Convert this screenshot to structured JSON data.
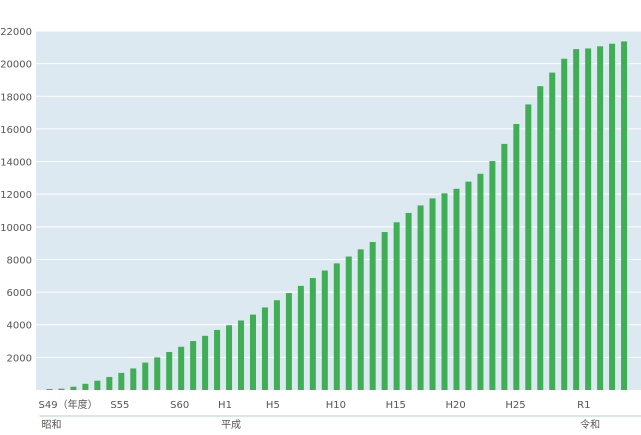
{
  "chart_data": {
    "type": "bar",
    "title": "",
    "xlabel": "",
    "ylabel": "",
    "ylim": [
      0,
      22000
    ],
    "y_ticks": [
      2000,
      4000,
      6000,
      8000,
      10000,
      12000,
      14000,
      16000,
      18000,
      20000,
      22000
    ],
    "grid": true,
    "bar_color": "#3fae55",
    "plot_background": "#dce9f0",
    "categories": [
      "S49",
      "S50",
      "S51",
      "S52",
      "S53",
      "S54",
      "S55",
      "S56",
      "S57",
      "S58",
      "S59",
      "S60",
      "S61",
      "S62",
      "S63",
      "H1",
      "H2",
      "H3",
      "H4",
      "H5",
      "H6",
      "H7",
      "H8",
      "H9",
      "H10",
      "H11",
      "H12",
      "H13",
      "H14",
      "H15",
      "H16",
      "H17",
      "H18",
      "H19",
      "H20",
      "H21",
      "H22",
      "H23",
      "H24",
      "H25",
      "H26",
      "H27",
      "H28",
      "H29",
      "H30",
      "R1",
      "R2",
      "R3",
      "R4"
    ],
    "values": [
      60,
      80,
      200,
      380,
      570,
      800,
      1050,
      1320,
      1680,
      2000,
      2330,
      2650,
      3000,
      3320,
      3680,
      3970,
      4260,
      4620,
      5060,
      5500,
      5940,
      6380,
      6860,
      7320,
      7760,
      8180,
      8620,
      9070,
      9680,
      10280,
      10850,
      11310,
      11740,
      12050,
      12330,
      12770,
      13250,
      14030,
      15080,
      16300,
      17500,
      18620,
      19450,
      20300,
      20890,
      20930,
      21060,
      21220,
      21360
    ],
    "x_tick_labels": [
      "S49（年度）",
      "S55",
      "S60",
      "H1",
      "H5",
      "H10",
      "H15",
      "H20",
      "H25",
      "R1"
    ],
    "eras": [
      "昭和",
      "平成",
      "令和"
    ]
  }
}
